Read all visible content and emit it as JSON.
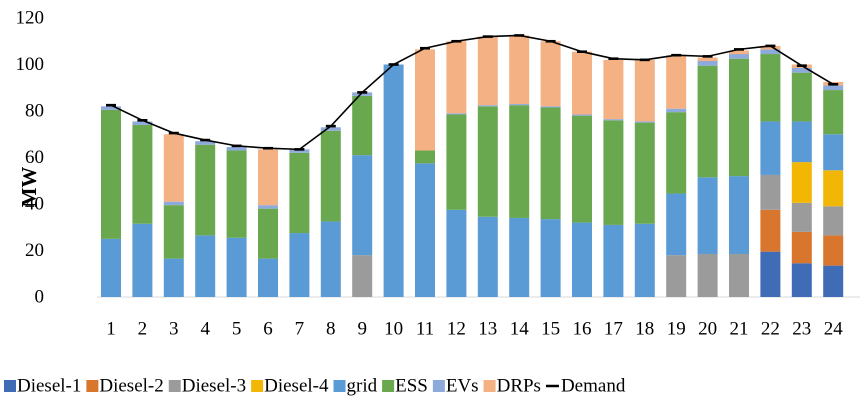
{
  "chart_data": {
    "type": "bar",
    "stacked": true,
    "ylabel": "MW",
    "xlabel": "",
    "ylim": [
      0,
      120
    ],
    "yticks": [
      0,
      20,
      40,
      60,
      80,
      100,
      120
    ],
    "categories": [
      "1",
      "2",
      "3",
      "4",
      "5",
      "6",
      "7",
      "8",
      "9",
      "10",
      "11",
      "12",
      "13",
      "14",
      "15",
      "16",
      "17",
      "18",
      "19",
      "20",
      "21",
      "22",
      "23",
      "24"
    ],
    "legend_position": "bottom",
    "series": [
      {
        "name": "Diesel-1",
        "color": "#3f6cb4",
        "values": [
          0,
          0,
          0,
          0,
          0,
          0,
          0,
          0,
          0,
          0,
          0,
          0,
          0,
          0,
          0,
          0,
          0,
          0,
          0,
          0,
          0,
          19.5,
          14.5,
          13.5
        ]
      },
      {
        "name": "Diesel-2",
        "color": "#d9762e",
        "values": [
          0,
          0,
          0,
          0,
          0,
          0,
          0,
          0,
          0,
          0,
          0,
          0,
          0,
          0,
          0,
          0,
          0,
          0,
          0,
          0,
          0,
          18,
          13.5,
          13
        ]
      },
      {
        "name": "Diesel-3",
        "color": "#9b9b9b",
        "values": [
          0,
          0,
          0,
          0,
          0,
          0,
          0,
          0,
          18,
          0,
          0,
          0,
          0,
          0,
          0,
          0,
          0,
          0,
          18,
          18.5,
          18.5,
          15,
          12.5,
          12.5
        ]
      },
      {
        "name": "Diesel-4",
        "color": "#f2b705",
        "values": [
          0,
          0,
          0,
          0,
          0,
          0,
          0,
          0,
          0,
          0,
          0,
          0,
          0,
          0,
          0,
          0,
          0,
          0,
          0,
          0,
          0,
          0,
          17.5,
          15.5
        ]
      },
      {
        "name": "grid",
        "color": "#5b9bd5",
        "values": [
          25,
          31.5,
          16.5,
          26.5,
          25.5,
          16.5,
          27.5,
          32.5,
          43,
          100,
          57.5,
          37.5,
          34.5,
          34,
          33.5,
          32,
          31,
          31.5,
          26.5,
          33,
          33.5,
          23,
          17.5,
          15.5
        ]
      },
      {
        "name": "ESS",
        "color": "#6aa84f",
        "values": [
          55.5,
          42.5,
          23,
          39,
          37.5,
          21.5,
          34.5,
          39,
          25.5,
          0,
          5.5,
          41,
          47.5,
          48.5,
          48,
          46,
          45,
          43.5,
          35,
          48,
          50.5,
          29,
          21,
          19
        ]
      },
      {
        "name": "EVs",
        "color": "#8eaadb",
        "values": [
          1.5,
          1.5,
          1.5,
          1.5,
          1.5,
          1.5,
          1.5,
          1.5,
          1.5,
          0,
          0,
          0.5,
          0.5,
          0.5,
          0.5,
          0.5,
          0.5,
          0.5,
          1.5,
          2,
          2,
          2,
          2,
          2
        ]
      },
      {
        "name": "DRPs",
        "color": "#f4b183",
        "values": [
          0,
          0,
          29,
          0,
          0,
          24,
          0,
          0,
          0,
          0,
          43.5,
          31,
          29.5,
          29.5,
          28,
          27,
          25.5,
          26.5,
          23,
          1.5,
          1.5,
          1.5,
          1.5,
          1.5
        ]
      },
      {
        "name": "Demand",
        "color": "#000000",
        "kind": "line",
        "values": [
          82.5,
          76,
          70.5,
          67.5,
          65,
          64,
          63.5,
          73.5,
          88,
          100,
          107,
          110,
          112,
          112.5,
          110,
          105.5,
          102.5,
          102,
          104,
          103.5,
          106.5,
          108,
          99.5,
          91.5
        ]
      }
    ]
  }
}
